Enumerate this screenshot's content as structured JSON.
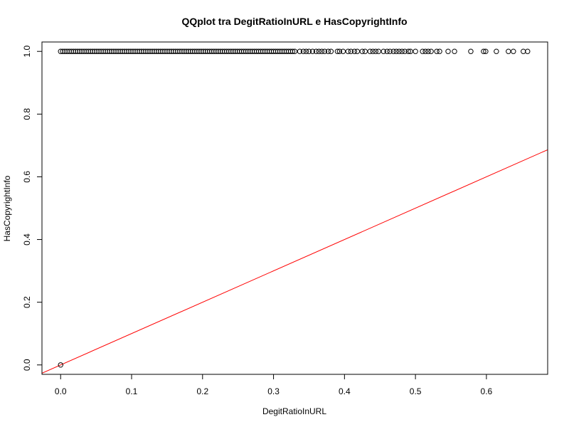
{
  "chart_data": {
    "type": "scatter",
    "title": "QQplot tra DegitRatioInURL e HasCopyrightInfo",
    "xlabel": "DegitRatioInURL",
    "ylabel": "HasCopyrightInfo",
    "xlim": [
      -0.0263,
      0.6863
    ],
    "ylim": [
      -0.03,
      1.03
    ],
    "xticks": [
      0.0,
      0.1,
      0.2,
      0.3,
      0.4,
      0.5,
      0.6
    ],
    "xtick_labels": [
      "0.0",
      "0.1",
      "0.2",
      "0.3",
      "0.4",
      "0.5",
      "0.6"
    ],
    "yticks": [
      0.0,
      0.2,
      0.4,
      0.6,
      0.8,
      1.0
    ],
    "ytick_labels": [
      "0.0",
      "0.2",
      "0.4",
      "0.6",
      "0.8",
      "1.0"
    ],
    "grid": false,
    "point_color": "#000000",
    "line_color": "#ff0000",
    "reference_line": {
      "intercept": 0,
      "slope": 1
    },
    "series": [
      {
        "values": [
          {
            "x": 0.0,
            "y": 0
          },
          {
            "x": 0.0,
            "y": 1
          },
          {
            "x": 0.003,
            "y": 1
          },
          {
            "x": 0.006,
            "y": 1
          },
          {
            "x": 0.009,
            "y": 1
          },
          {
            "x": 0.012,
            "y": 1
          },
          {
            "x": 0.015,
            "y": 1
          },
          {
            "x": 0.018,
            "y": 1
          },
          {
            "x": 0.021,
            "y": 1
          },
          {
            "x": 0.024,
            "y": 1
          },
          {
            "x": 0.027,
            "y": 1
          },
          {
            "x": 0.03,
            "y": 1
          },
          {
            "x": 0.033,
            "y": 1
          },
          {
            "x": 0.036,
            "y": 1
          },
          {
            "x": 0.039,
            "y": 1
          },
          {
            "x": 0.042,
            "y": 1
          },
          {
            "x": 0.045,
            "y": 1
          },
          {
            "x": 0.048,
            "y": 1
          },
          {
            "x": 0.051,
            "y": 1
          },
          {
            "x": 0.054,
            "y": 1
          },
          {
            "x": 0.057,
            "y": 1
          },
          {
            "x": 0.06,
            "y": 1
          },
          {
            "x": 0.063,
            "y": 1
          },
          {
            "x": 0.066,
            "y": 1
          },
          {
            "x": 0.069,
            "y": 1
          },
          {
            "x": 0.072,
            "y": 1
          },
          {
            "x": 0.075,
            "y": 1
          },
          {
            "x": 0.078,
            "y": 1
          },
          {
            "x": 0.081,
            "y": 1
          },
          {
            "x": 0.084,
            "y": 1
          },
          {
            "x": 0.087,
            "y": 1
          },
          {
            "x": 0.09,
            "y": 1
          },
          {
            "x": 0.093,
            "y": 1
          },
          {
            "x": 0.096,
            "y": 1
          },
          {
            "x": 0.099,
            "y": 1
          },
          {
            "x": 0.102,
            "y": 1
          },
          {
            "x": 0.105,
            "y": 1
          },
          {
            "x": 0.108,
            "y": 1
          },
          {
            "x": 0.111,
            "y": 1
          },
          {
            "x": 0.114,
            "y": 1
          },
          {
            "x": 0.117,
            "y": 1
          },
          {
            "x": 0.12,
            "y": 1
          },
          {
            "x": 0.123,
            "y": 1
          },
          {
            "x": 0.126,
            "y": 1
          },
          {
            "x": 0.129,
            "y": 1
          },
          {
            "x": 0.132,
            "y": 1
          },
          {
            "x": 0.135,
            "y": 1
          },
          {
            "x": 0.138,
            "y": 1
          },
          {
            "x": 0.141,
            "y": 1
          },
          {
            "x": 0.144,
            "y": 1
          },
          {
            "x": 0.147,
            "y": 1
          },
          {
            "x": 0.15,
            "y": 1
          },
          {
            "x": 0.153,
            "y": 1
          },
          {
            "x": 0.156,
            "y": 1
          },
          {
            "x": 0.159,
            "y": 1
          },
          {
            "x": 0.162,
            "y": 1
          },
          {
            "x": 0.165,
            "y": 1
          },
          {
            "x": 0.168,
            "y": 1
          },
          {
            "x": 0.171,
            "y": 1
          },
          {
            "x": 0.174,
            "y": 1
          },
          {
            "x": 0.177,
            "y": 1
          },
          {
            "x": 0.18,
            "y": 1
          },
          {
            "x": 0.183,
            "y": 1
          },
          {
            "x": 0.186,
            "y": 1
          },
          {
            "x": 0.189,
            "y": 1
          },
          {
            "x": 0.192,
            "y": 1
          },
          {
            "x": 0.195,
            "y": 1
          },
          {
            "x": 0.198,
            "y": 1
          },
          {
            "x": 0.201,
            "y": 1
          },
          {
            "x": 0.204,
            "y": 1
          },
          {
            "x": 0.207,
            "y": 1
          },
          {
            "x": 0.21,
            "y": 1
          },
          {
            "x": 0.213,
            "y": 1
          },
          {
            "x": 0.216,
            "y": 1
          },
          {
            "x": 0.219,
            "y": 1
          },
          {
            "x": 0.222,
            "y": 1
          },
          {
            "x": 0.225,
            "y": 1
          },
          {
            "x": 0.228,
            "y": 1
          },
          {
            "x": 0.231,
            "y": 1
          },
          {
            "x": 0.234,
            "y": 1
          },
          {
            "x": 0.237,
            "y": 1
          },
          {
            "x": 0.24,
            "y": 1
          },
          {
            "x": 0.243,
            "y": 1
          },
          {
            "x": 0.246,
            "y": 1
          },
          {
            "x": 0.249,
            "y": 1
          },
          {
            "x": 0.252,
            "y": 1
          },
          {
            "x": 0.255,
            "y": 1
          },
          {
            "x": 0.258,
            "y": 1
          },
          {
            "x": 0.261,
            "y": 1
          },
          {
            "x": 0.264,
            "y": 1
          },
          {
            "x": 0.267,
            "y": 1
          },
          {
            "x": 0.27,
            "y": 1
          },
          {
            "x": 0.273,
            "y": 1
          },
          {
            "x": 0.276,
            "y": 1
          },
          {
            "x": 0.279,
            "y": 1
          },
          {
            "x": 0.282,
            "y": 1
          },
          {
            "x": 0.285,
            "y": 1
          },
          {
            "x": 0.288,
            "y": 1
          },
          {
            "x": 0.291,
            "y": 1
          },
          {
            "x": 0.294,
            "y": 1
          },
          {
            "x": 0.297,
            "y": 1
          },
          {
            "x": 0.3,
            "y": 1
          },
          {
            "x": 0.303,
            "y": 1
          },
          {
            "x": 0.306,
            "y": 1
          },
          {
            "x": 0.309,
            "y": 1
          },
          {
            "x": 0.312,
            "y": 1
          },
          {
            "x": 0.315,
            "y": 1
          },
          {
            "x": 0.318,
            "y": 1
          },
          {
            "x": 0.321,
            "y": 1
          },
          {
            "x": 0.324,
            "y": 1
          },
          {
            "x": 0.327,
            "y": 1
          },
          {
            "x": 0.33,
            "y": 1
          },
          {
            "x": 0.337,
            "y": 1
          },
          {
            "x": 0.342,
            "y": 1
          },
          {
            "x": 0.346,
            "y": 1
          },
          {
            "x": 0.35,
            "y": 1
          },
          {
            "x": 0.355,
            "y": 1
          },
          {
            "x": 0.36,
            "y": 1
          },
          {
            "x": 0.364,
            "y": 1
          },
          {
            "x": 0.368,
            "y": 1
          },
          {
            "x": 0.372,
            "y": 1
          },
          {
            "x": 0.377,
            "y": 1
          },
          {
            "x": 0.381,
            "y": 1
          },
          {
            "x": 0.39,
            "y": 1
          },
          {
            "x": 0.393,
            "y": 1
          },
          {
            "x": 0.398,
            "y": 1
          },
          {
            "x": 0.405,
            "y": 1
          },
          {
            "x": 0.409,
            "y": 1
          },
          {
            "x": 0.414,
            "y": 1
          },
          {
            "x": 0.418,
            "y": 1
          },
          {
            "x": 0.425,
            "y": 1
          },
          {
            "x": 0.429,
            "y": 1
          },
          {
            "x": 0.436,
            "y": 1
          },
          {
            "x": 0.44,
            "y": 1
          },
          {
            "x": 0.444,
            "y": 1
          },
          {
            "x": 0.448,
            "y": 1
          },
          {
            "x": 0.455,
            "y": 1
          },
          {
            "x": 0.46,
            "y": 1
          },
          {
            "x": 0.464,
            "y": 1
          },
          {
            "x": 0.469,
            "y": 1
          },
          {
            "x": 0.473,
            "y": 1
          },
          {
            "x": 0.477,
            "y": 1
          },
          {
            "x": 0.481,
            "y": 1
          },
          {
            "x": 0.485,
            "y": 1
          },
          {
            "x": 0.49,
            "y": 1
          },
          {
            "x": 0.493,
            "y": 1
          },
          {
            "x": 0.5,
            "y": 1
          },
          {
            "x": 0.51,
            "y": 1
          },
          {
            "x": 0.514,
            "y": 1
          },
          {
            "x": 0.518,
            "y": 1
          },
          {
            "x": 0.522,
            "y": 1
          },
          {
            "x": 0.53,
            "y": 1
          },
          {
            "x": 0.534,
            "y": 1
          },
          {
            "x": 0.546,
            "y": 1
          },
          {
            "x": 0.555,
            "y": 1
          },
          {
            "x": 0.578,
            "y": 1
          },
          {
            "x": 0.596,
            "y": 1
          },
          {
            "x": 0.599,
            "y": 1
          },
          {
            "x": 0.614,
            "y": 1
          },
          {
            "x": 0.631,
            "y": 1
          },
          {
            "x": 0.638,
            "y": 1
          },
          {
            "x": 0.652,
            "y": 1
          },
          {
            "x": 0.658,
            "y": 1
          }
        ]
      }
    ]
  }
}
